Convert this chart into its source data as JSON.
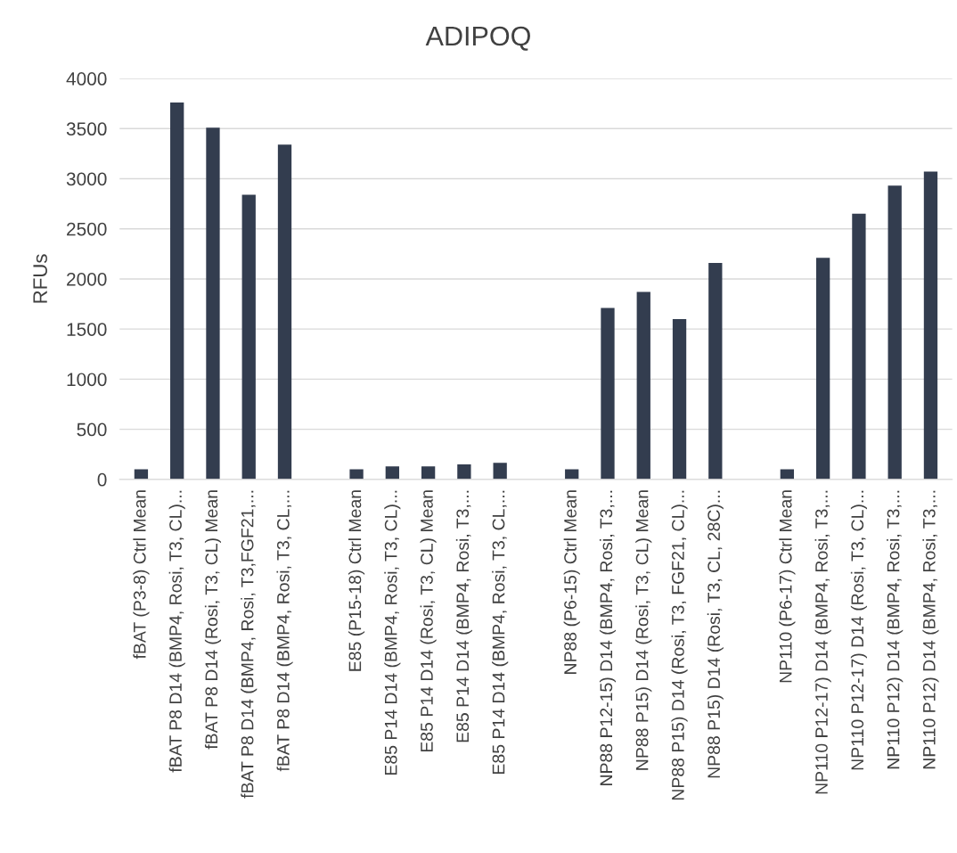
{
  "chart_data": {
    "type": "bar",
    "title": "ADIPOQ",
    "ylabel": "RFUs",
    "categories": [
      "fBAT (P3-8) Ctrl Mean",
      "fBAT P8 D14 (BMP4, Rosi, T3, CL)...",
      "fBAT P8 D14 (Rosi, T3, CL) Mean",
      "fBAT P8 D14 (BMP4, Rosi, T3,FGF21,...",
      "fBAT P8 D14 (BMP4, Rosi, T3, CL,...",
      null,
      "E85 (P15-18) Ctrl Mean",
      "E85 P14 D14 (BMP4, Rosi, T3, CL)...",
      "E85 P14 D14 (Rosi, T3, CL) Mean",
      "E85 P14 D14 (BMP4, Rosi, T3,...",
      "E85 P14 D14 (BMP4, Rosi, T3, CL,...",
      null,
      "NP88 (P6-15) Ctrl Mean",
      "NP88 P12-15) D14 (BMP4, Rosi, T3,...",
      "NP88 P15) D14 (Rosi, T3, CL) Mean",
      "NP88 P15) D14 (Rosi, T3, FGF21, CL)...",
      "NP88 P15) D14 (Rosi, T3, CL, 28C)...",
      null,
      "NP110 (P6-17) Ctrl Mean",
      "NP110 P12-17) D14 (BMP4, Rosi, T3,...",
      "NP110 P12-17) D14 (Rosi, T3, CL)...",
      "NP110 P12) D14 (BMP4, Rosi, T3,...",
      "NP110 P12) D14 (BMP4, Rosi, T3,..."
    ],
    "values": [
      100,
      3760,
      3510,
      2840,
      3340,
      null,
      100,
      130,
      130,
      150,
      165,
      null,
      100,
      1710,
      1870,
      1600,
      2160,
      null,
      100,
      2210,
      2650,
      2930,
      3070
    ],
    "color": "#333d4f",
    "ylim": [
      0,
      4000
    ],
    "yticks": [
      0,
      500,
      1000,
      1500,
      2000,
      2500,
      3000,
      3500,
      4000
    ],
    "grid": "y"
  }
}
